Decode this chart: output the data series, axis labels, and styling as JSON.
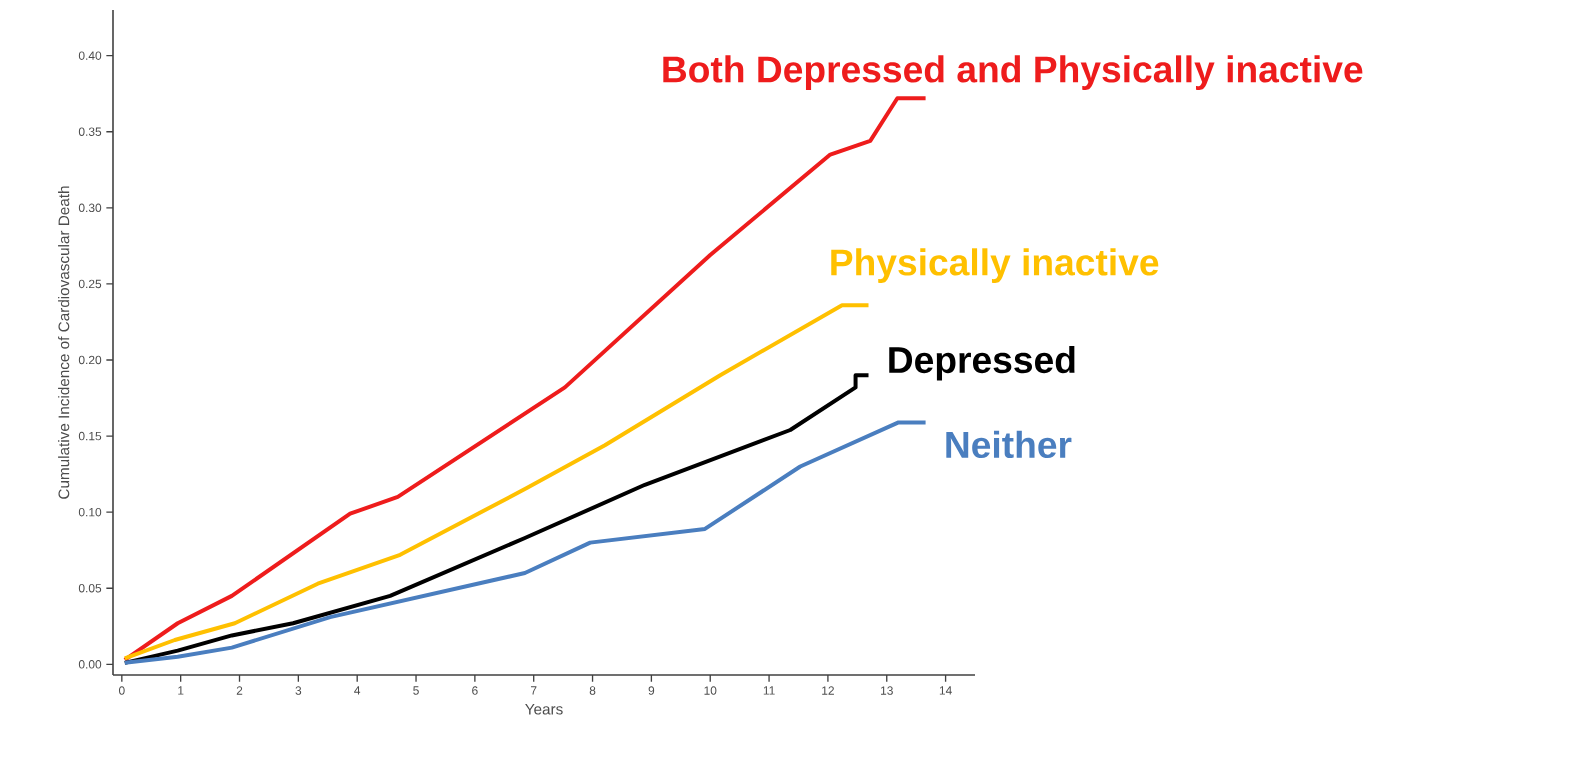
{
  "chart_data": {
    "type": "line",
    "xlabel": "Years",
    "ylabel": "Cumulative Incidence of Cardiovascular Death",
    "xlim": [
      -0.15,
      14.5
    ],
    "ylim": [
      -0.007,
      0.43
    ],
    "xticks": [
      0,
      1,
      2,
      3,
      4,
      5,
      6,
      7,
      8,
      9,
      10,
      11,
      12,
      13,
      14
    ],
    "yticks": [
      {
        "value": 0,
        "label": "0.00"
      },
      {
        "value": 0.05,
        "label": "0.05"
      },
      {
        "value": 0.1,
        "label": "0.10"
      },
      {
        "value": 0.15,
        "label": "0.15"
      },
      {
        "value": 0.2,
        "label": "0.20"
      },
      {
        "value": 0.25,
        "label": "0.25"
      },
      {
        "value": 0.3,
        "label": "0.30"
      },
      {
        "value": 0.35,
        "label": "0.35"
      },
      {
        "value": 0.4,
        "label": "0.40"
      }
    ],
    "grid": false,
    "legend": false,
    "marker": "none",
    "line_style": "solid",
    "series": [
      {
        "name": "Both Depressed and Physically inactive",
        "color": "#ee1c1c",
        "x": [
          0.05,
          0.95,
          1.87,
          3.88,
          4.69,
          7.53,
          10,
          12.04,
          12.72,
          13.18,
          13.66
        ],
        "values": [
          0.003,
          0.027,
          0.045,
          0.099,
          0.11,
          0.182,
          0.269,
          0.335,
          0.344,
          0.372,
          0.372
        ]
      },
      {
        "name": "Physically inactive",
        "color": "#ffc000",
        "x": [
          0.05,
          0.9,
          1.92,
          3.33,
          4.73,
          6.89,
          8.21,
          10.17,
          12.24,
          12.69
        ],
        "values": [
          0.004,
          0.016,
          0.027,
          0.053,
          0.072,
          0.116,
          0.144,
          0.19,
          0.236,
          0.236
        ]
      },
      {
        "name": "Depressed",
        "color": "#000000",
        "x": [
          0.05,
          0.95,
          1.87,
          2.91,
          4.56,
          6.85,
          8.89,
          11.36,
          12.47,
          12.47,
          12.69
        ],
        "values": [
          0.001,
          0.009,
          0.019,
          0.027,
          0.045,
          0.083,
          0.118,
          0.154,
          0.182,
          0.19,
          0.19
        ]
      },
      {
        "name": "Neither",
        "color": "#4a7ebf",
        "x": [
          0.05,
          0.95,
          1.87,
          3.54,
          6.85,
          7.96,
          9.91,
          11.53,
          13.2,
          13.66
        ],
        "values": [
          0.001,
          0.005,
          0.011,
          0.031,
          0.06,
          0.08,
          0.089,
          0.13,
          0.159,
          0.159
        ]
      }
    ]
  }
}
